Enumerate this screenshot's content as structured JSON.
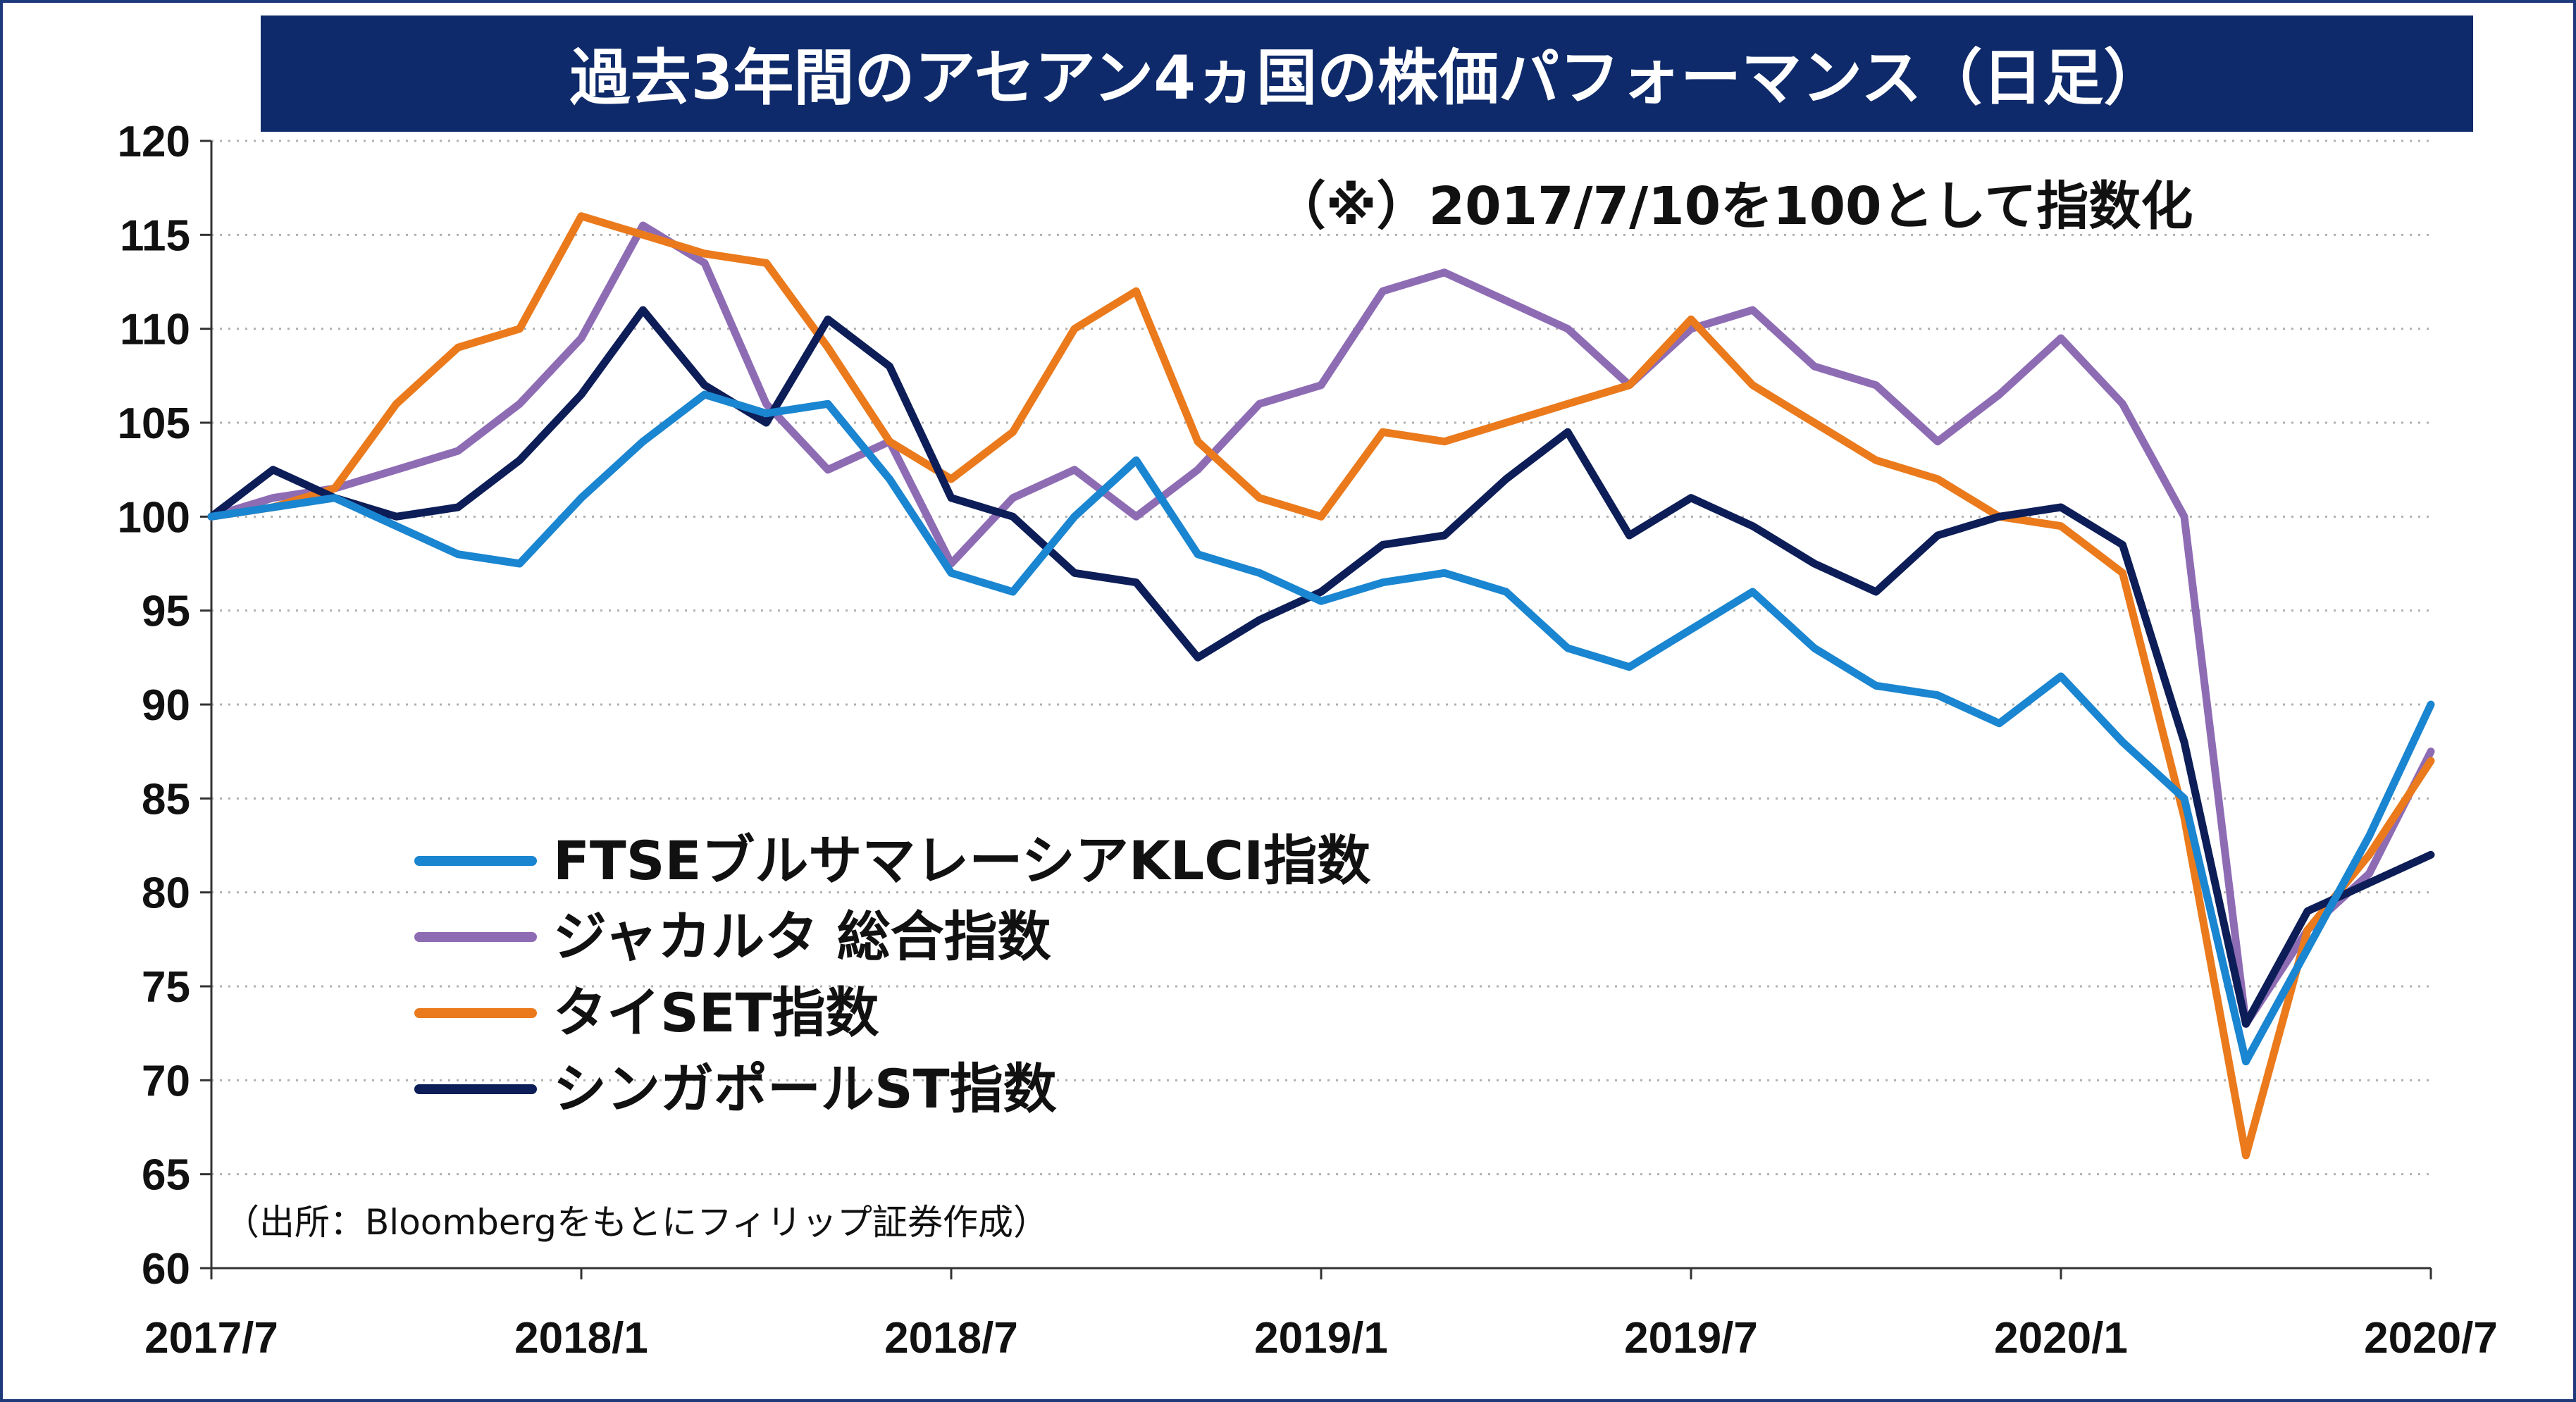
{
  "chart_data": {
    "type": "line",
    "title": "過去3年間のアセアン4ヵ国の株価パフォーマンス（日足）",
    "annotation": "（※）2017/7/10を100として指数化",
    "source": "（出所：Bloombergをもとにフィリップ証券作成）",
    "x_tick_labels": [
      "2017/7",
      "2018/1",
      "2018/7",
      "2019/1",
      "2019/7",
      "2020/1",
      "2020/7"
    ],
    "y_ticks": [
      60,
      65,
      70,
      75,
      80,
      85,
      90,
      95,
      100,
      105,
      110,
      115,
      120
    ],
    "ylim": [
      60,
      120
    ],
    "x_range": [
      "2017/7",
      "2020/7"
    ],
    "grid": "horizontal dotted",
    "legend_position": "lower-left",
    "xlabel": "",
    "ylabel": "",
    "colors": {
      "title_bg": "#0e2a6a",
      "title_text": "#ffffff",
      "grid": "#b0b0b0",
      "axis": "#333333",
      "border": "#1f3a7a"
    },
    "series": [
      {
        "name": "FTSEブルサマレーシアKLCI指数",
        "color": "#1a85d0",
        "points": [
          [
            "2017/7",
            100
          ],
          [
            "2017/8",
            100.5
          ],
          [
            "2017/9",
            101
          ],
          [
            "2017/10",
            99.5
          ],
          [
            "2017/11",
            98
          ],
          [
            "2017/12",
            97.5
          ],
          [
            "2018/1",
            101
          ],
          [
            "2018/2",
            104
          ],
          [
            "2018/3",
            106.5
          ],
          [
            "2018/4",
            105.5
          ],
          [
            "2018/5",
            106
          ],
          [
            "2018/6",
            102
          ],
          [
            "2018/7",
            97
          ],
          [
            "2018/8",
            96
          ],
          [
            "2018/9",
            100
          ],
          [
            "2018/10",
            103
          ],
          [
            "2018/11",
            98
          ],
          [
            "2018/12",
            97
          ],
          [
            "2019/1",
            95.5
          ],
          [
            "2019/2",
            96.5
          ],
          [
            "2019/3",
            97
          ],
          [
            "2019/4",
            96
          ],
          [
            "2019/5",
            93
          ],
          [
            "2019/6",
            92
          ],
          [
            "2019/7",
            94
          ],
          [
            "2019/8",
            96
          ],
          [
            "2019/9",
            93
          ],
          [
            "2019/10",
            91
          ],
          [
            "2019/11",
            90.5
          ],
          [
            "2019/12",
            89
          ],
          [
            "2020/1",
            91.5
          ],
          [
            "2020/2",
            88
          ],
          [
            "2020/3",
            85
          ],
          [
            "2020/4",
            71
          ],
          [
            "2020/5",
            77
          ],
          [
            "2020/6",
            83
          ],
          [
            "2020/7",
            90
          ]
        ]
      },
      {
        "name": "ジャカルタ 総合指数",
        "color": "#8e6cb4",
        "points": [
          [
            "2017/7",
            100
          ],
          [
            "2017/8",
            101
          ],
          [
            "2017/9",
            101.5
          ],
          [
            "2017/10",
            102.5
          ],
          [
            "2017/11",
            103.5
          ],
          [
            "2017/12",
            106
          ],
          [
            "2018/1",
            109.5
          ],
          [
            "2018/2",
            115.5
          ],
          [
            "2018/3",
            113.5
          ],
          [
            "2018/4",
            106
          ],
          [
            "2018/5",
            102.5
          ],
          [
            "2018/6",
            104
          ],
          [
            "2018/7",
            97.5
          ],
          [
            "2018/8",
            101
          ],
          [
            "2018/9",
            102.5
          ],
          [
            "2018/10",
            100
          ],
          [
            "2018/11",
            102.5
          ],
          [
            "2018/12",
            106
          ],
          [
            "2019/1",
            107
          ],
          [
            "2019/2",
            112
          ],
          [
            "2019/3",
            113
          ],
          [
            "2019/4",
            111.5
          ],
          [
            "2019/5",
            110
          ],
          [
            "2019/6",
            107
          ],
          [
            "2019/7",
            110
          ],
          [
            "2019/8",
            111
          ],
          [
            "2019/9",
            108
          ],
          [
            "2019/10",
            107
          ],
          [
            "2019/11",
            104
          ],
          [
            "2019/12",
            106.5
          ],
          [
            "2020/1",
            109.5
          ],
          [
            "2020/2",
            106
          ],
          [
            "2020/3",
            100
          ],
          [
            "2020/4",
            73
          ],
          [
            "2020/5",
            78
          ],
          [
            "2020/6",
            81
          ],
          [
            "2020/7",
            87.5
          ]
        ]
      },
      {
        "name": "タイSET指数",
        "color": "#ea7a1c",
        "points": [
          [
            "2017/7",
            100
          ],
          [
            "2017/8",
            100.5
          ],
          [
            "2017/9",
            101.5
          ],
          [
            "2017/10",
            106
          ],
          [
            "2017/11",
            109
          ],
          [
            "2017/12",
            110
          ],
          [
            "2018/1",
            116
          ],
          [
            "2018/2",
            115
          ],
          [
            "2018/3",
            114
          ],
          [
            "2018/4",
            113.5
          ],
          [
            "2018/5",
            109
          ],
          [
            "2018/6",
            104
          ],
          [
            "2018/7",
            102
          ],
          [
            "2018/8",
            104.5
          ],
          [
            "2018/9",
            110
          ],
          [
            "2018/10",
            112
          ],
          [
            "2018/11",
            104
          ],
          [
            "2018/12",
            101
          ],
          [
            "2019/1",
            100
          ],
          [
            "2019/2",
            104.5
          ],
          [
            "2019/3",
            104
          ],
          [
            "2019/4",
            105
          ],
          [
            "2019/5",
            106
          ],
          [
            "2019/6",
            107
          ],
          [
            "2019/7",
            110.5
          ],
          [
            "2019/8",
            107
          ],
          [
            "2019/9",
            105
          ],
          [
            "2019/10",
            103
          ],
          [
            "2019/11",
            102
          ],
          [
            "2019/12",
            100
          ],
          [
            "2020/1",
            99.5
          ],
          [
            "2020/2",
            97
          ],
          [
            "2020/3",
            84
          ],
          [
            "2020/4",
            66
          ],
          [
            "2020/5",
            78
          ],
          [
            "2020/6",
            82
          ],
          [
            "2020/7",
            87
          ]
        ]
      },
      {
        "name": "シンガポールST指数",
        "color": "#0c1d57",
        "points": [
          [
            "2017/7",
            100
          ],
          [
            "2017/8",
            102.5
          ],
          [
            "2017/9",
            101
          ],
          [
            "2017/10",
            100
          ],
          [
            "2017/11",
            100.5
          ],
          [
            "2017/12",
            103
          ],
          [
            "2018/1",
            106.5
          ],
          [
            "2018/2",
            111
          ],
          [
            "2018/3",
            107
          ],
          [
            "2018/4",
            105
          ],
          [
            "2018/5",
            110.5
          ],
          [
            "2018/6",
            108
          ],
          [
            "2018/7",
            101
          ],
          [
            "2018/8",
            100
          ],
          [
            "2018/9",
            97
          ],
          [
            "2018/10",
            96.5
          ],
          [
            "2018/11",
            92.5
          ],
          [
            "2018/12",
            94.5
          ],
          [
            "2019/1",
            96
          ],
          [
            "2019/2",
            98.5
          ],
          [
            "2019/3",
            99
          ],
          [
            "2019/4",
            102
          ],
          [
            "2019/5",
            104.5
          ],
          [
            "2019/6",
            99
          ],
          [
            "2019/7",
            101
          ],
          [
            "2019/8",
            99.5
          ],
          [
            "2019/9",
            97.5
          ],
          [
            "2019/10",
            96
          ],
          [
            "2019/11",
            99
          ],
          [
            "2019/12",
            100
          ],
          [
            "2020/1",
            100.5
          ],
          [
            "2020/2",
            98.5
          ],
          [
            "2020/3",
            88
          ],
          [
            "2020/4",
            73
          ],
          [
            "2020/5",
            79
          ],
          [
            "2020/6",
            80.5
          ],
          [
            "2020/7",
            82
          ]
        ]
      }
    ]
  }
}
